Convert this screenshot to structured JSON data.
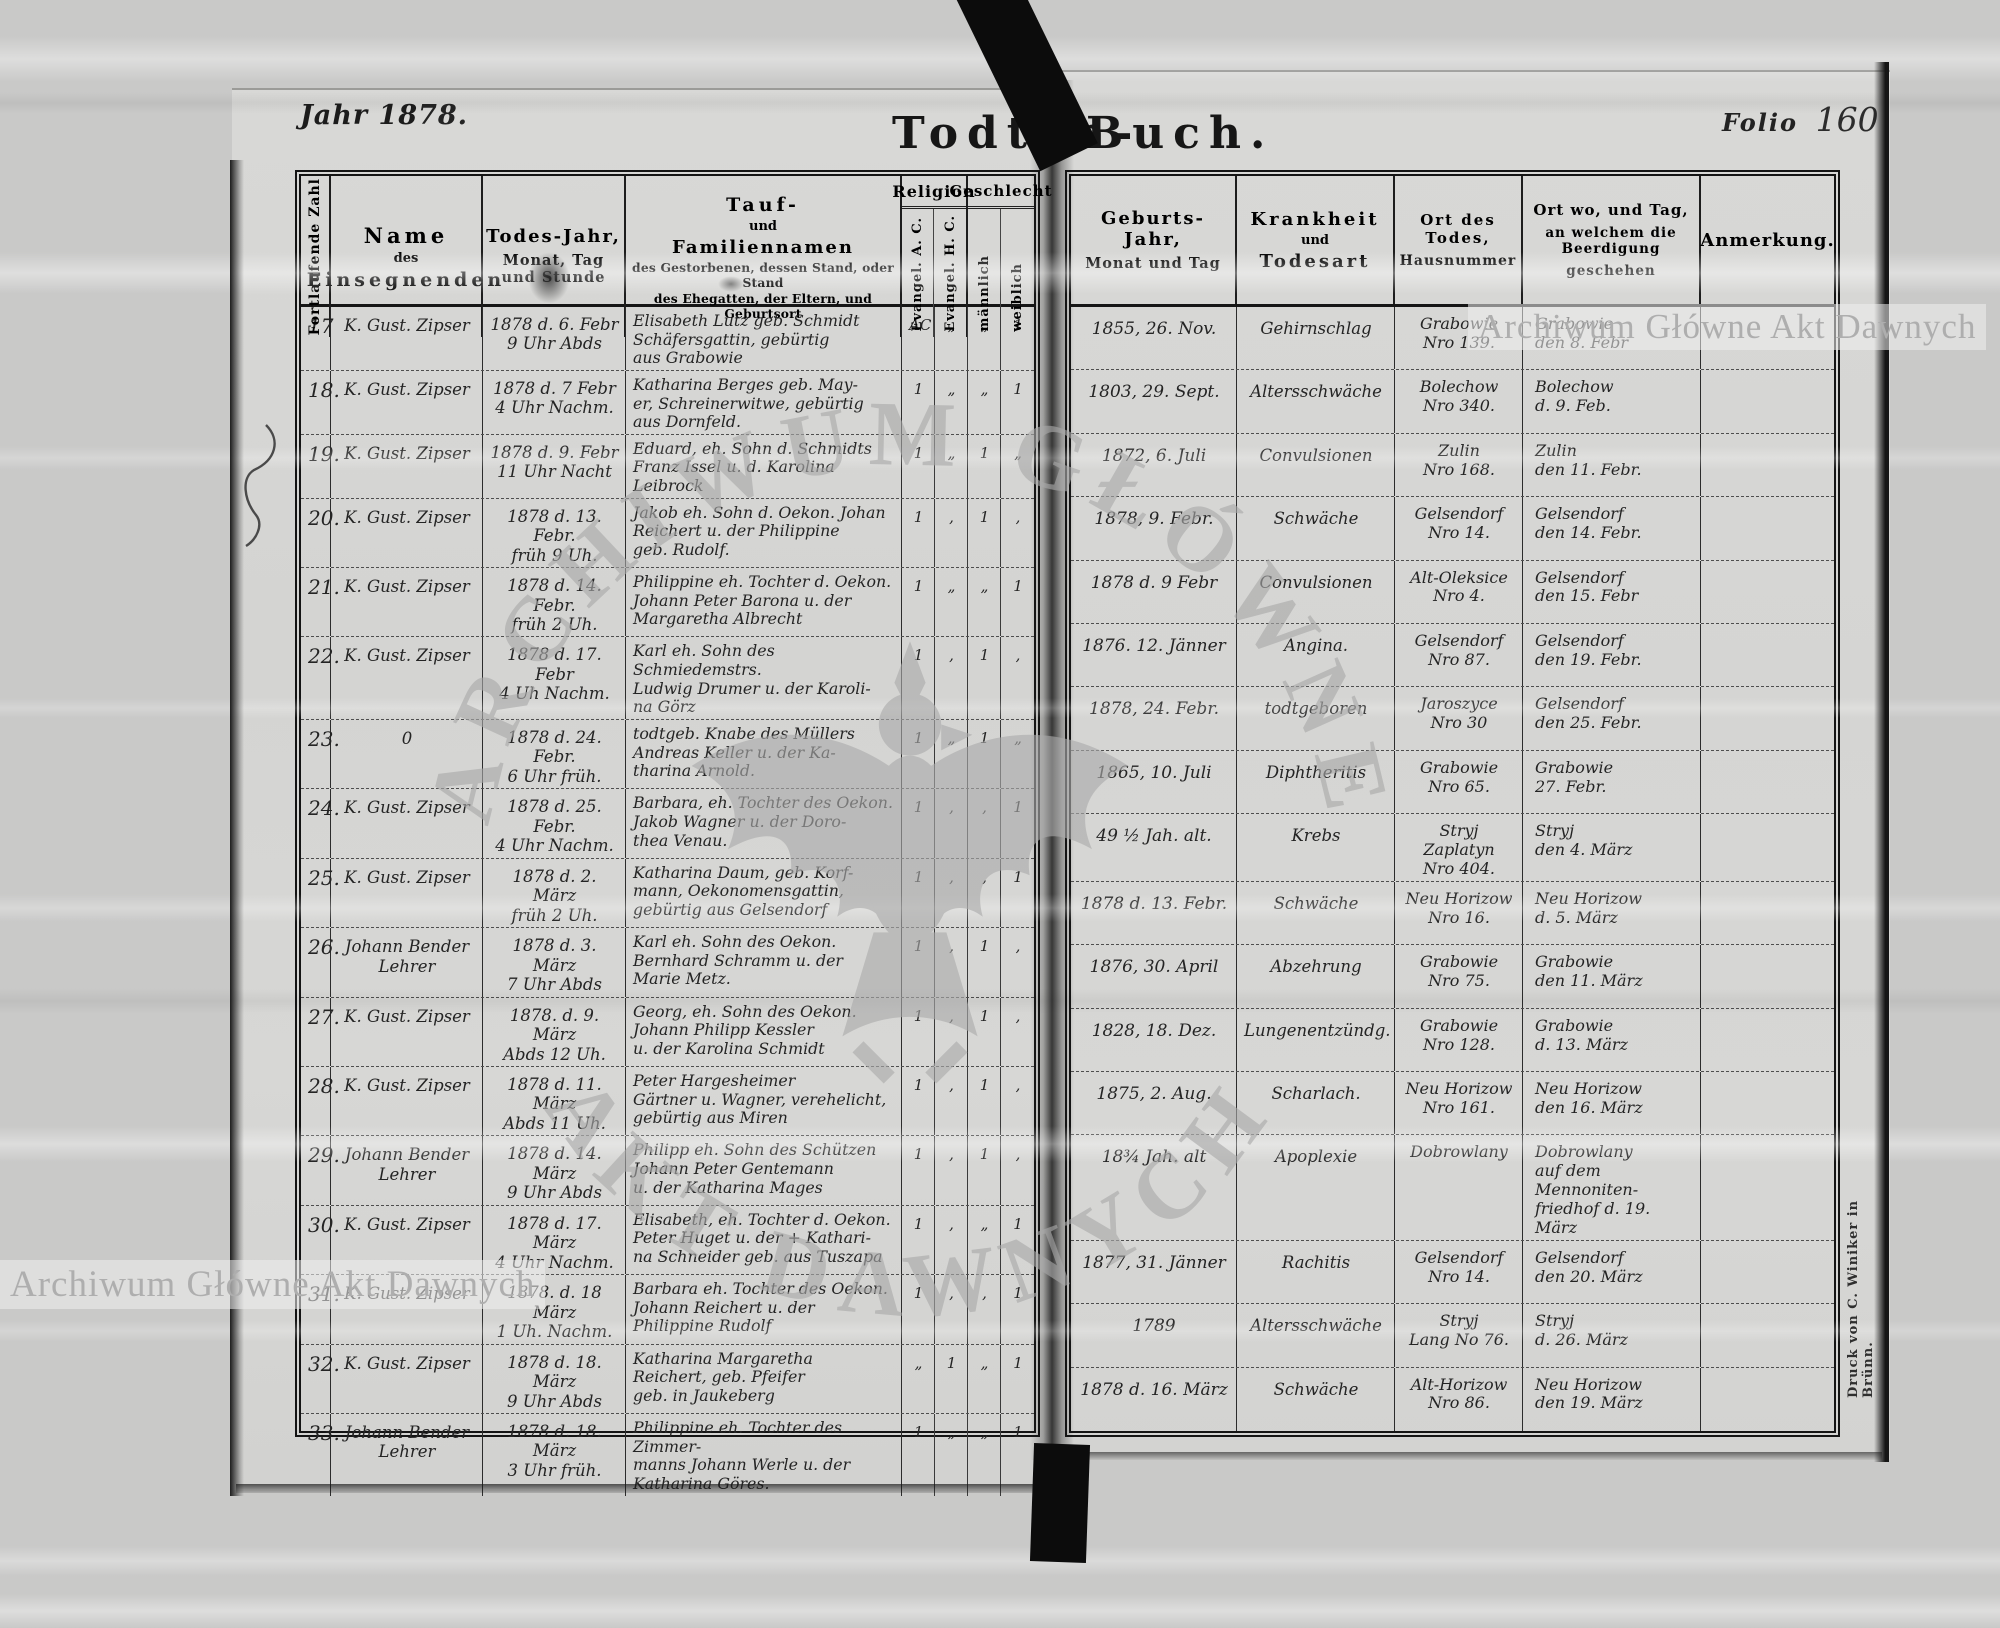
{
  "page": {
    "year_print": "Jahr 18",
    "year_hand": "78.",
    "title_left": "Todten-",
    "title_right": "Buch.",
    "folio_label": "Folio",
    "folio_number": "160",
    "printer_imprint": "Druck von C. Winiker in Brünn.",
    "watermark_label": "Archiwum Główne Akt Dawnych",
    "watermark_arc_top": "ARCHIWUM GŁÓWNE",
    "watermark_arc_bottom": "AKT DAWNYCH"
  },
  "table": {
    "headers": {
      "number": "Fortlaufende Zahl",
      "name1": "Name",
      "name2": "des",
      "name3": "Einsegnenden",
      "death1": "Todes-Jahr,",
      "death2": "Monat, Tag und Stunde",
      "tauf1": "Tauf-",
      "tauf2": "und",
      "tauf3": "Familiennamen",
      "tauf4": "des Gestorbenen, dessen Stand, oder Stand",
      "tauf5": "des Ehegatten, der Eltern, und Geburtsort",
      "religion": "Religion",
      "religion_ac": "Evangel. A. C.",
      "religion_hc": "Evangel. H. C.",
      "sex": "Geschlecht",
      "sex_m": "männlich",
      "sex_f": "weiblich",
      "birth1": "Geburts-Jahr,",
      "birth2": "Monat und Tag",
      "ill1": "Krankheit",
      "ill2": "und",
      "ill3": "Todesart",
      "place1": "Ort des Todes,",
      "place2": "Hausnummer",
      "burial1": "Ort wo, und Tag,",
      "burial2": "an welchem die Beerdigung",
      "burial3": "geschehen",
      "remark": "Anmerkung."
    },
    "rows": [
      {
        "nr": "17",
        "name": "K. Gust. Zipser",
        "death": "1878 d. 6. Febr\n9 Uhr Abds",
        "person": "Elisabeth Lutz geb. Schmidt\nSchäfersgattin, gebürtig\naus Grabowie",
        "ac": "AC",
        "hc": "„",
        "m": "„",
        "f": "1",
        "birth": "1855, 26. Nov.",
        "illness": "Gehirnschlag",
        "place": "Grabowie\nNro 139.",
        "burial": "Grabowie\nden 8. Febr",
        "remark": ""
      },
      {
        "nr": "18.",
        "name": "K. Gust. Zipser",
        "death": "1878 d. 7 Febr\n4 Uhr Nachm.",
        "person": "Katharina Berges geb. May-\ner, Schreinerwitwe, gebürtig\naus Dornfeld.",
        "ac": "1",
        "hc": "„",
        "m": "„",
        "f": "1",
        "birth": "1803, 29. Sept.",
        "illness": "Altersschwäche",
        "place": "Bolechow\nNro 340.",
        "burial": "Bolechow\nd. 9. Feb.",
        "remark": ""
      },
      {
        "nr": "19.",
        "name": "K. Gust. Zipser",
        "death": "1878 d. 9. Febr\n11 Uhr Nacht",
        "person": "Eduard, eh. Sohn d. Schmidts\nFranz Issel u. d. Karolina\nLeibrock",
        "ac": "1",
        "hc": "„",
        "m": "1",
        "f": "„",
        "birth": "1872, 6. Juli",
        "illness": "Convulsionen",
        "place": "Zulin\nNro 168.",
        "burial": "Zulin\nden 11. Febr.",
        "remark": ""
      },
      {
        "nr": "20.",
        "name": "K. Gust. Zipser",
        "death": "1878 d. 13. Febr.\nfrüh 9 Uh.",
        "person": "Jakob eh. Sohn d. Oekon. Johan\nReichert u. der Philippine\ngeb. Rudolf.",
        "ac": "1",
        "hc": ",",
        "m": "1",
        "f": ",",
        "birth": "1878, 9. Febr.",
        "illness": "Schwäche",
        "place": "Gelsendorf\nNro 14.",
        "burial": "Gelsendorf\nden 14. Febr.",
        "remark": ""
      },
      {
        "nr": "21.",
        "name": "K. Gust. Zipser",
        "death": "1878 d. 14. Febr.\nfrüh 2 Uh.",
        "person": "Philippine eh. Tochter d. Oekon.\nJohann Peter Barona u. der\nMargaretha Albrecht",
        "ac": "1",
        "hc": "„",
        "m": "„",
        "f": "1",
        "birth": "1878 d. 9 Febr",
        "illness": "Convulsionen",
        "place": "Alt-Oleksice\nNro 4.",
        "burial": "Gelsendorf\nden 15. Febr",
        "remark": ""
      },
      {
        "nr": "22.",
        "name": "K. Gust. Zipser",
        "death": "1878 d. 17. Febr\n4 Uh Nachm.",
        "person": "Karl eh. Sohn des Schmiedemstrs.\nLudwig Drumer u. der Karoli-\nna Görz",
        "ac": "1",
        "hc": ",",
        "m": "1",
        "f": ",",
        "birth": "1876. 12. Jänner",
        "illness": "Angina.",
        "place": "Gelsendorf\nNro 87.",
        "burial": "Gelsendorf\nden 19. Febr.",
        "remark": ""
      },
      {
        "nr": "23.",
        "name": "0",
        "death": "1878 d. 24. Febr.\n6 Uhr früh.",
        "person": "todtgeb. Knabe des Müllers\nAndreas Keller u. der Ka-\ntharina Arnold.",
        "ac": "1",
        "hc": "„",
        "m": "1",
        "f": "„",
        "birth": "1878, 24. Febr.",
        "illness": "todtgeboren",
        "place": "Jaroszyce\nNro 30",
        "burial": "Gelsendorf\nden 25. Febr.",
        "remark": ""
      },
      {
        "nr": "24.",
        "name": "K. Gust. Zipser",
        "death": "1878 d. 25. Febr.\n4 Uhr Nachm.",
        "person": "Barbara, eh. Tochter des Oekon.\nJakob Wagner u. der Doro-\nthea Venau.",
        "ac": "1",
        "hc": ",",
        "m": ",",
        "f": "1",
        "birth": "1865, 10. Juli",
        "illness": "Diphtheritis",
        "place": "Grabowie\nNro 65.",
        "burial": "Grabowie\n27. Febr.",
        "remark": ""
      },
      {
        "nr": "25.",
        "name": "K. Gust. Zipser",
        "death": "1878 d. 2. März\nfrüh 2 Uh.",
        "person": "Katharina Daum, geb. Korf-\nmann, Oekonomensgattin,\ngebürtig aus Gelsendorf",
        "ac": "1",
        "hc": ",",
        "m": ",",
        "f": "1",
        "birth": "49 ½ Jah. alt.",
        "illness": "Krebs",
        "place": "Stryj\nZaplatyn\nNro 404.",
        "burial": "Stryj\nden 4. März",
        "remark": ""
      },
      {
        "nr": "26.",
        "name": "Johann Bender\nLehrer",
        "death": "1878 d. 3. März\n7 Uhr Abds",
        "person": "Karl eh. Sohn des Oekon.\nBernhard Schramm u. der\nMarie Metz.",
        "ac": "1",
        "hc": ",",
        "m": "1",
        "f": ",",
        "birth": "1878 d. 13. Febr.",
        "illness": "Schwäche",
        "place": "Neu Horizow\nNro 16.",
        "burial": "Neu Horizow\nd. 5. März",
        "remark": ""
      },
      {
        "nr": "27.",
        "name": "K. Gust. Zipser",
        "death": "1878. d. 9. März\nAbds 12 Uh.",
        "person": "Georg, eh. Sohn des Oekon.\nJohann Philipp Kessler\nu. der Karolina Schmidt",
        "ac": "1",
        "hc": ",",
        "m": "1",
        "f": ",",
        "birth": "1876, 30. April",
        "illness": "Abzehrung",
        "place": "Grabowie\nNro 75.",
        "burial": "Grabowie\nden 11. März",
        "remark": ""
      },
      {
        "nr": "28.",
        "name": "K. Gust. Zipser",
        "death": "1878 d. 11. März\nAbds 11 Uh.",
        "person": "Peter Hargesheimer\nGärtner u. Wagner, verehelicht,\ngebürtig aus Miren",
        "ac": "1",
        "hc": ",",
        "m": "1",
        "f": ",",
        "birth": "1828, 18. Dez.",
        "illness": "Lungenentzündg.",
        "place": "Grabowie\nNro 128.",
        "burial": "Grabowie\nd. 13. März",
        "remark": ""
      },
      {
        "nr": "29.",
        "name": "Johann Bender\nLehrer",
        "death": "1878 d. 14. März\n9 Uhr Abds",
        "person": "Philipp eh. Sohn des Schützen\nJohann Peter Gentemann\nu. der Katharina Mages",
        "ac": "1",
        "hc": ",",
        "m": "1",
        "f": ",",
        "birth": "1875, 2. Aug.",
        "illness": "Scharlach.",
        "place": "Neu Horizow\nNro 161.",
        "burial": "Neu Horizow\nden 16. März",
        "remark": ""
      },
      {
        "nr": "30.",
        "name": "K. Gust. Zipser",
        "death": "1878 d. 17. März\n4 Uhr Nachm.",
        "person": "Elisabeth, eh. Tochter d. Oekon.\nPeter Huget u. der + Kathari-\nna Schneider geb. aus Tuszapa",
        "ac": "1",
        "hc": ",",
        "m": "„",
        "f": "1",
        "birth": "18¾ Jah. alt",
        "illness": "Apoplexie",
        "place": "Dobrowlany",
        "burial": "Dobrowlany\nauf dem Mennoniten-\nfriedhof d. 19. März",
        "remark": ""
      },
      {
        "nr": "31.",
        "name": "K. Gust. Zipser",
        "death": "1878. d. 18 März\n1 Uh. Nachm.",
        "person": "Barbara eh. Tochter des Oekon.\nJohann Reichert u. der\nPhilippine Rudolf",
        "ac": "1",
        "hc": ",",
        "m": ",",
        "f": "1",
        "birth": "1877, 31. Jänner",
        "illness": "Rachitis",
        "place": "Gelsendorf\nNro 14.",
        "burial": "Gelsendorf\nden 20. März",
        "remark": ""
      },
      {
        "nr": "32.",
        "name": "K. Gust. Zipser",
        "death": "1878 d. 18. März\n9 Uhr Abds",
        "person": "Katharina Margaretha\nReichert, geb. Pfeifer\ngeb. in Jaukeberg",
        "ac": "„",
        "hc": "1",
        "m": "„",
        "f": "1",
        "birth": "1789",
        "illness": "Altersschwäche",
        "place": "Stryj\nLang No 76.",
        "burial": "Stryj\nd. 26. März",
        "remark": ""
      },
      {
        "nr": "33.",
        "name": "Johann Bender\nLehrer",
        "death": "1878 d. 18. März\n3 Uhr früh.",
        "person": "Philippine eh. Tochter des Zimmer-\nmanns Johann Werle u. der\nKatharina Göres.",
        "ac": "1",
        "hc": "„",
        "m": "„",
        "f": "1",
        "birth": "1878 d. 16. März",
        "illness": "Schwäche",
        "place": "Alt-Horizow\nNro 86.",
        "burial": "Neu Horizow\nden 19. März",
        "remark": ""
      }
    ]
  }
}
